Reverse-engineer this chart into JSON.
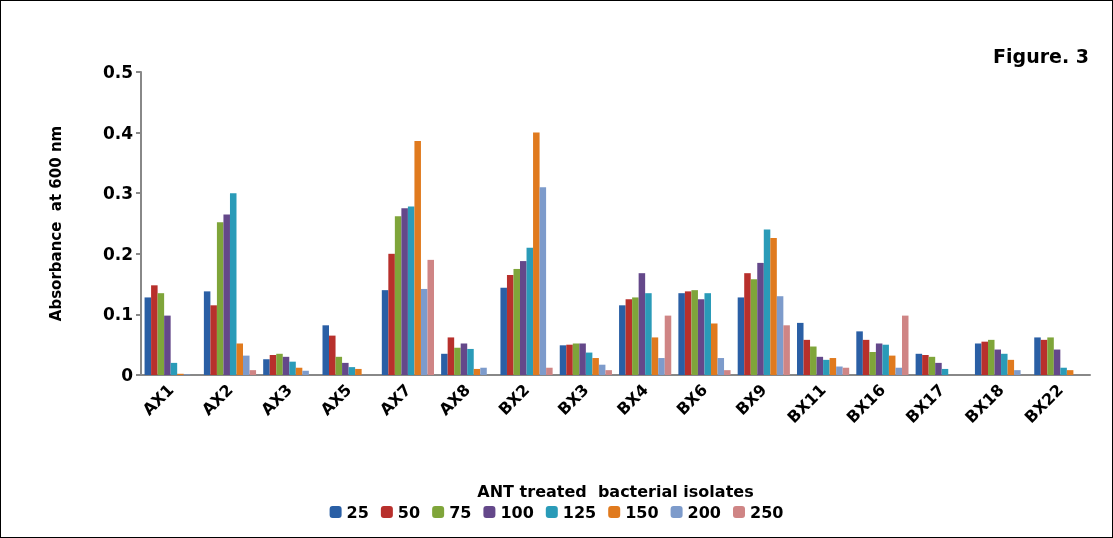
{
  "chart_data": {
    "type": "bar",
    "title": "Figure. 3",
    "xlabel": "ANT treated  bacterial isolates",
    "ylabel": "Absorbance  at 600 nm",
    "categories": [
      "AX1",
      "AX2",
      "AX3",
      "AX5",
      "AX7",
      "AX8",
      "BX2",
      "BX3",
      "BX4",
      "BX6",
      "BX9",
      "BX11",
      "BX16",
      "BX17",
      "BX18",
      "BX22"
    ],
    "series": [
      {
        "name": "25",
        "color": "#2a5fa5",
        "values": [
          0.128,
          0.138,
          0.026,
          0.082,
          0.14,
          0.035,
          0.144,
          0.049,
          0.115,
          0.135,
          0.128,
          0.086,
          0.072,
          0.035,
          0.052,
          0.062
        ]
      },
      {
        "name": "50",
        "color": "#b8302c",
        "values": [
          0.148,
          0.115,
          0.033,
          0.065,
          0.2,
          0.062,
          0.165,
          0.05,
          0.125,
          0.138,
          0.168,
          0.058,
          0.058,
          0.033,
          0.055,
          0.058
        ]
      },
      {
        "name": "75",
        "color": "#7fa53a",
        "values": [
          0.135,
          0.252,
          0.035,
          0.03,
          0.262,
          0.045,
          0.175,
          0.052,
          0.128,
          0.14,
          0.158,
          0.047,
          0.038,
          0.03,
          0.058,
          0.062
        ]
      },
      {
        "name": "100",
        "color": "#64488a",
        "values": [
          0.098,
          0.265,
          0.03,
          0.02,
          0.275,
          0.052,
          0.188,
          0.052,
          0.168,
          0.125,
          0.185,
          0.03,
          0.052,
          0.02,
          0.042,
          0.042
        ]
      },
      {
        "name": "125",
        "color": "#2a9bb8",
        "values": [
          0.02,
          0.3,
          0.022,
          0.013,
          0.278,
          0.043,
          0.21,
          0.037,
          0.135,
          0.135,
          0.24,
          0.025,
          0.05,
          0.01,
          0.035,
          0.012
        ]
      },
      {
        "name": "150",
        "color": "#e07a1e",
        "values": [
          0.002,
          0.052,
          0.012,
          0.01,
          0.386,
          0.01,
          0.4,
          0.028,
          0.062,
          0.085,
          0.226,
          0.028,
          0.032,
          0,
          0.025,
          0.008
        ]
      },
      {
        "name": "200",
        "color": "#7d9bcb",
        "values": [
          0.001,
          0.032,
          0.007,
          0,
          0.142,
          0.012,
          0.31,
          0.017,
          0.028,
          0.028,
          0.13,
          0.014,
          0.012,
          0,
          0.008,
          0
        ]
      },
      {
        "name": "250",
        "color": "#cf8585",
        "values": [
          0,
          0.008,
          0,
          0,
          0.19,
          0,
          0.012,
          0.008,
          0.098,
          0.008,
          0.082,
          0.012,
          0.098,
          0,
          0,
          0
        ]
      }
    ],
    "ylim": [
      0,
      0.5
    ],
    "yticks": [
      0,
      0.1,
      0.2,
      0.3,
      0.4,
      0.5
    ],
    "grid": false,
    "legend": "bottom"
  }
}
